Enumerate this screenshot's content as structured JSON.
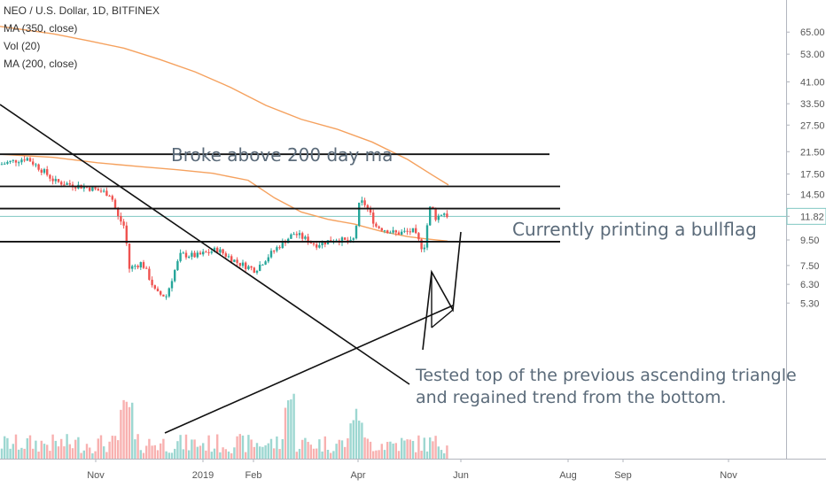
{
  "chart_data": {
    "type": "candlestick",
    "legend": [
      "NEO / U.S. Dollar, 1D, BITFINEX",
      "MA (350, close)",
      "Vol (20)",
      "MA (200, close)"
    ],
    "y_axis": {
      "scale": "log",
      "ticks": [
        "65.00",
        "53.00",
        "41.00",
        "33.50",
        "27.50",
        "21.50",
        "17.50",
        "14.50",
        "11.82",
        "9.50",
        "7.50",
        "6.30",
        "5.30"
      ],
      "last_price_label": "11.82"
    },
    "x_axis": {
      "ticks": [
        "Nov",
        "2019",
        "Feb",
        "Apr",
        "Jun",
        "Aug",
        "Sep",
        "Nov"
      ]
    },
    "horizontal_levels": [
      21.0,
      15.6,
      12.7,
      9.35
    ],
    "annotations": [
      "Broke above 200 day ma",
      "Currently printing a bullflag",
      "Tested top of the previous ascending triangle",
      "and regained trend from the bottom."
    ],
    "colors": {
      "up": "#26a69a",
      "down": "#ef5350",
      "ma": "#f5a15e",
      "last_price_line": "#7fc7c3",
      "annotation_text": "#5b6b7a"
    }
  }
}
